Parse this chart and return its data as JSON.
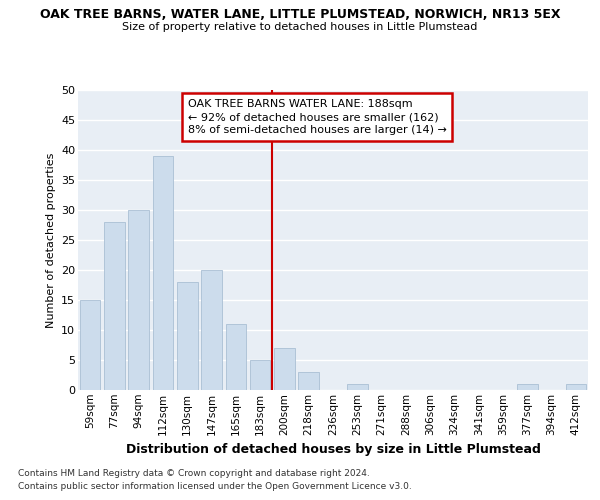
{
  "title": "OAK TREE BARNS, WATER LANE, LITTLE PLUMSTEAD, NORWICH, NR13 5EX",
  "subtitle": "Size of property relative to detached houses in Little Plumstead",
  "xlabel": "Distribution of detached houses by size in Little Plumstead",
  "ylabel": "Number of detached properties",
  "categories": [
    "59sqm",
    "77sqm",
    "94sqm",
    "112sqm",
    "130sqm",
    "147sqm",
    "165sqm",
    "183sqm",
    "200sqm",
    "218sqm",
    "236sqm",
    "253sqm",
    "271sqm",
    "288sqm",
    "306sqm",
    "324sqm",
    "341sqm",
    "359sqm",
    "377sqm",
    "394sqm",
    "412sqm"
  ],
  "values": [
    15,
    28,
    30,
    39,
    18,
    20,
    11,
    5,
    7,
    3,
    0,
    1,
    0,
    0,
    0,
    0,
    0,
    0,
    1,
    0,
    1
  ],
  "bar_color": "#ccdcec",
  "bar_edge_color": "#aabfd4",
  "vline_x": 7.5,
  "vline_color": "#cc0000",
  "annotation_text": "OAK TREE BARNS WATER LANE: 188sqm\n← 92% of detached houses are smaller (162)\n8% of semi-detached houses are larger (14) →",
  "annotation_box_color": "#ffffff",
  "annotation_box_edge": "#cc0000",
  "ylim": [
    0,
    50
  ],
  "yticks": [
    0,
    5,
    10,
    15,
    20,
    25,
    30,
    35,
    40,
    45,
    50
  ],
  "bg_color": "#e8eef5",
  "grid_color": "#ffffff",
  "footer_line1": "Contains HM Land Registry data © Crown copyright and database right 2024.",
  "footer_line2": "Contains public sector information licensed under the Open Government Licence v3.0."
}
